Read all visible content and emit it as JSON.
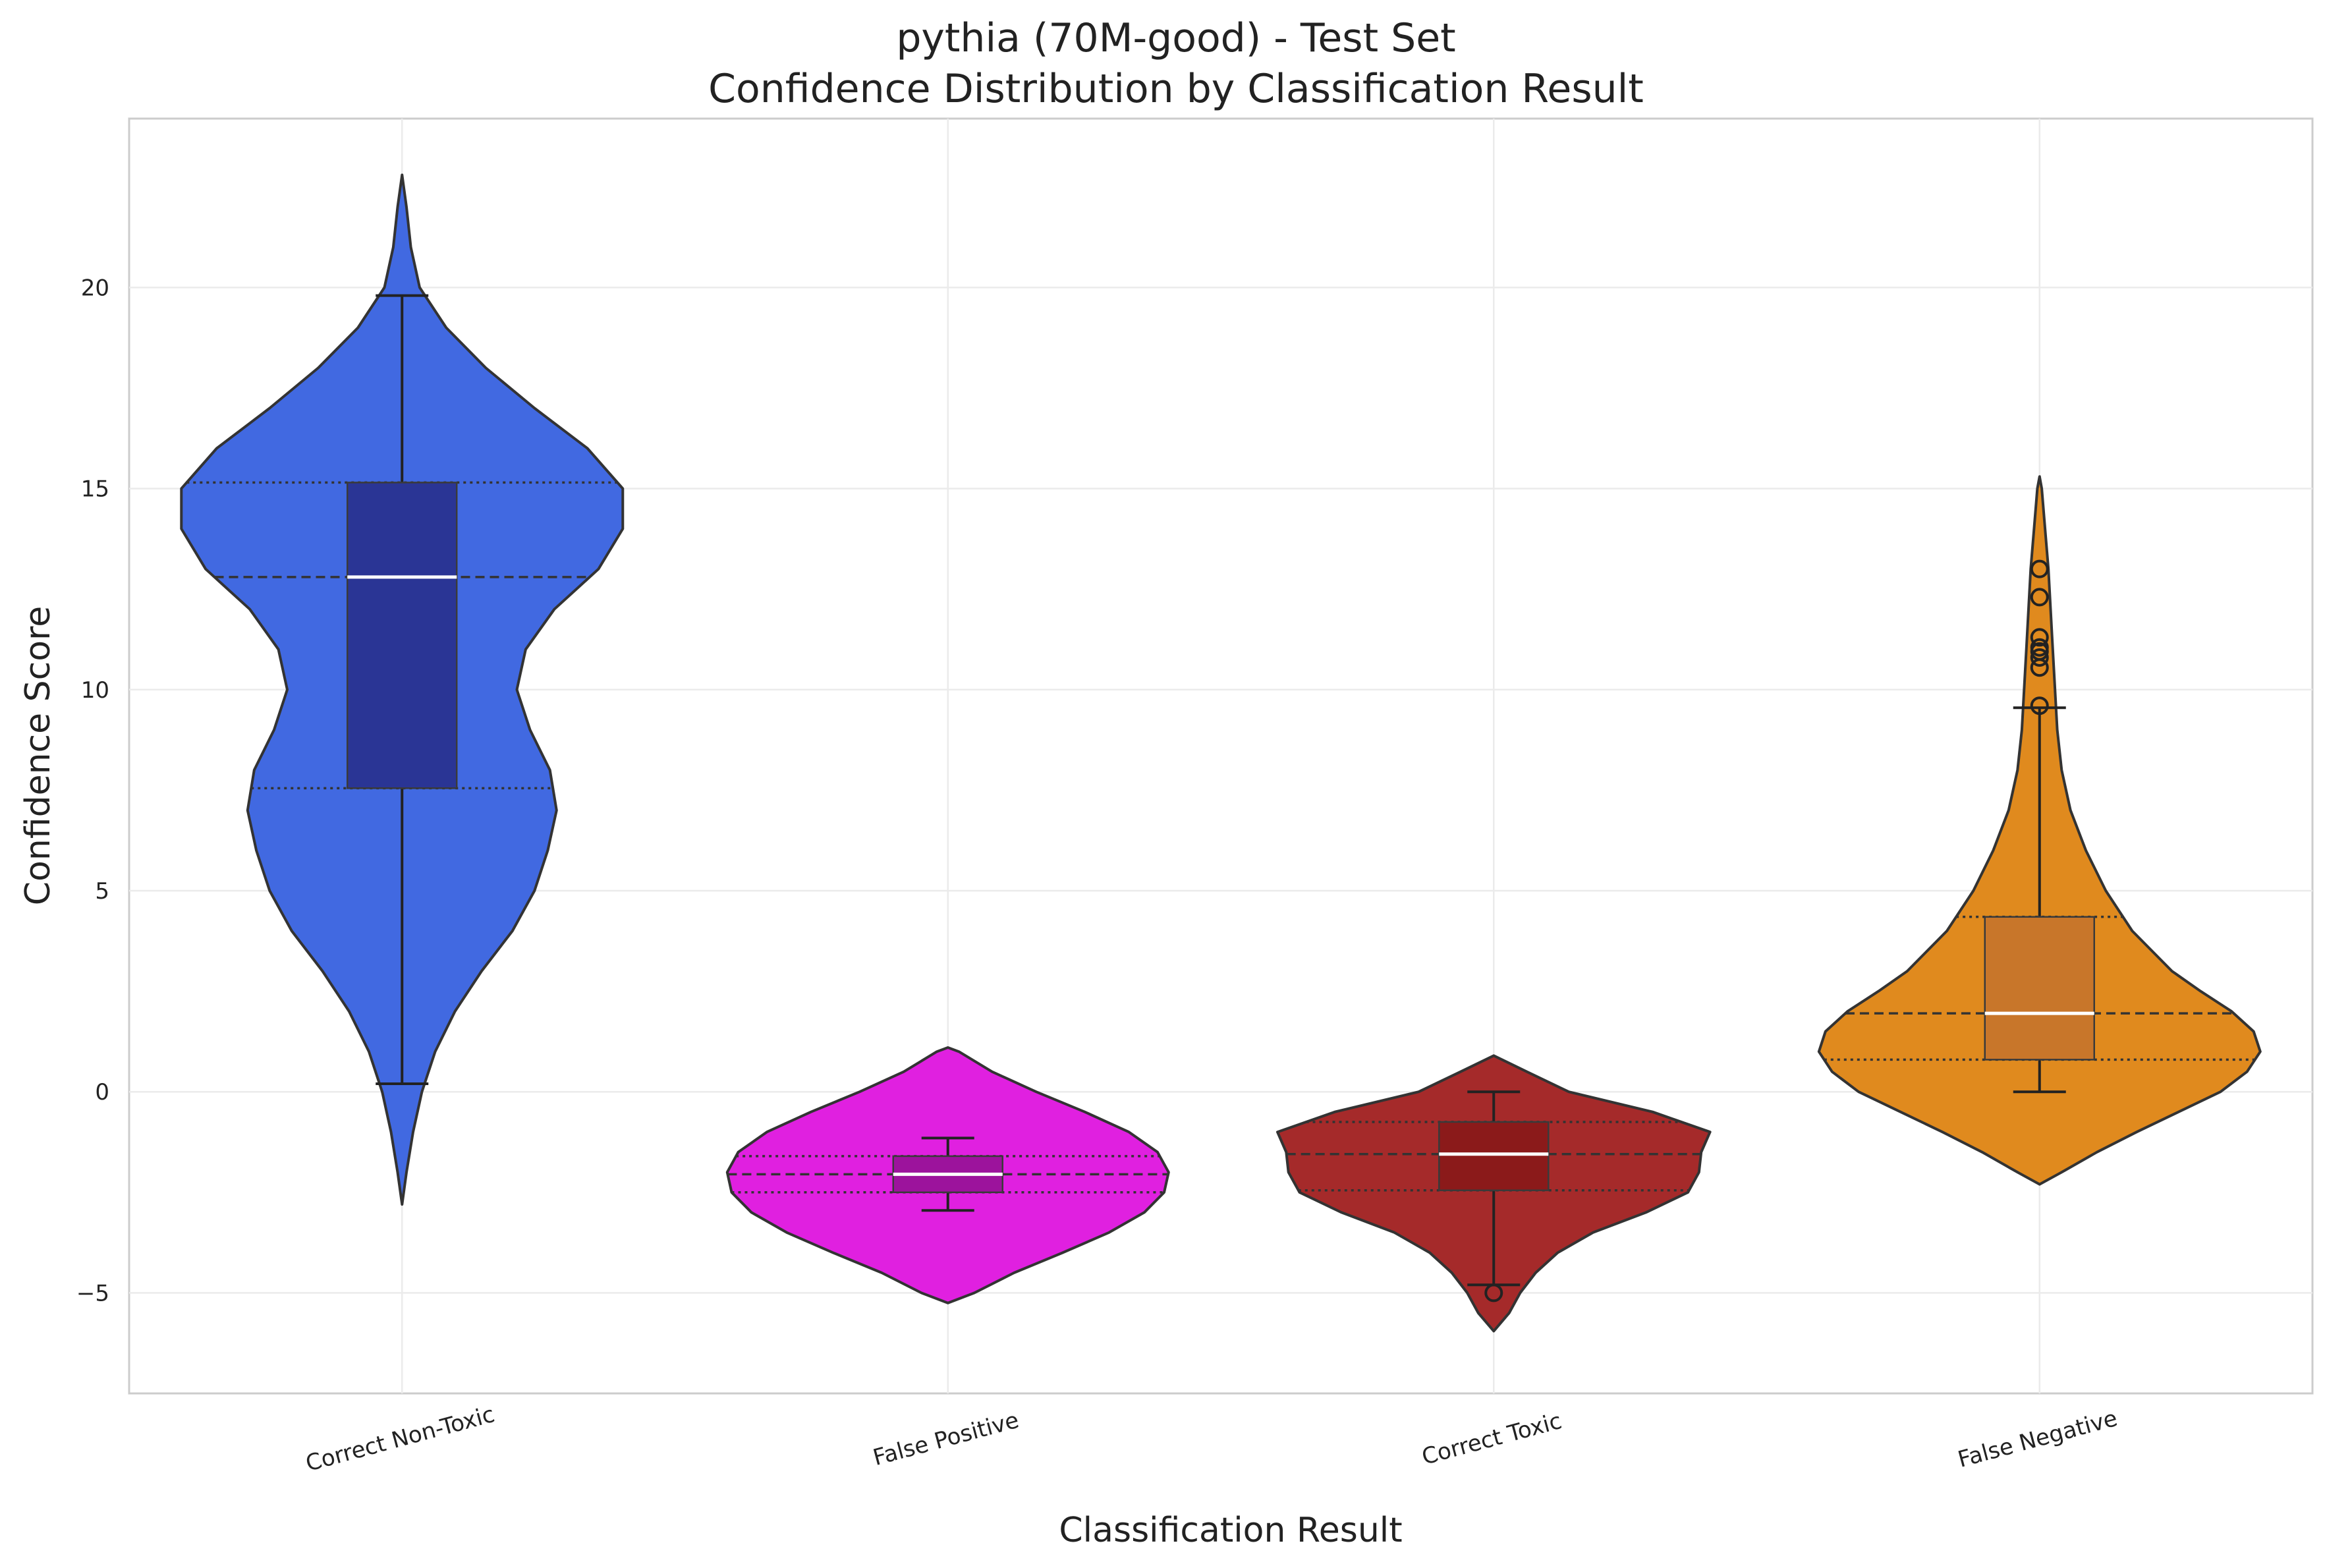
{
  "chart_data": {
    "type": "violin",
    "title": "pythia (70M-good) - Test Set",
    "subtitle": "Confidence Distribution by Classification Result",
    "xlabel": "Classification Result",
    "ylabel": "Confidence Score",
    "ylim": [
      -7.5,
      24.2
    ],
    "yticks": [
      -5,
      0,
      5,
      10,
      15,
      20
    ],
    "grid": true,
    "categories": [
      "Correct Non-Toxic",
      "False Positive",
      "Correct Toxic",
      "False Negative"
    ],
    "series": [
      {
        "name": "Correct Non-Toxic",
        "color": "#4169e1",
        "box_color": "#2a3595",
        "whisker_low": 0.2,
        "q1": 7.55,
        "median": 12.8,
        "q3": 15.15,
        "whisker_high": 19.8,
        "outliers": [],
        "density": [
          [
            -2.8,
            0.0
          ],
          [
            -2.0,
            0.02
          ],
          [
            -1.0,
            0.05
          ],
          [
            0.0,
            0.09
          ],
          [
            1.0,
            0.15
          ],
          [
            2.0,
            0.24
          ],
          [
            3.0,
            0.36
          ],
          [
            4.0,
            0.5
          ],
          [
            5.0,
            0.6
          ],
          [
            6.0,
            0.66
          ],
          [
            7.0,
            0.7
          ],
          [
            8.0,
            0.67
          ],
          [
            9.0,
            0.58
          ],
          [
            10.0,
            0.52
          ],
          [
            11.0,
            0.56
          ],
          [
            12.0,
            0.69
          ],
          [
            13.0,
            0.89
          ],
          [
            14.0,
            1.0
          ],
          [
            15.0,
            1.0
          ],
          [
            16.0,
            0.84
          ],
          [
            17.0,
            0.6
          ],
          [
            18.0,
            0.38
          ],
          [
            19.0,
            0.2
          ],
          [
            20.0,
            0.08
          ],
          [
            21.0,
            0.04
          ],
          [
            22.0,
            0.02
          ],
          [
            22.8,
            0.0
          ]
        ]
      },
      {
        "name": "False Positive",
        "color": "#e020e0",
        "box_color": "#9c139c",
        "whisker_low": -2.95,
        "q1": -2.5,
        "median": -2.05,
        "q3": -1.6,
        "whisker_high": -1.15,
        "outliers": [],
        "density": [
          [
            -5.25,
            0.0
          ],
          [
            -5.0,
            0.12
          ],
          [
            -4.5,
            0.3
          ],
          [
            -4.0,
            0.52
          ],
          [
            -3.5,
            0.73
          ],
          [
            -3.0,
            0.89
          ],
          [
            -2.5,
            0.98
          ],
          [
            -2.0,
            1.0
          ],
          [
            -1.5,
            0.95
          ],
          [
            -1.0,
            0.82
          ],
          [
            -0.5,
            0.62
          ],
          [
            0.0,
            0.4
          ],
          [
            0.5,
            0.2
          ],
          [
            1.0,
            0.05
          ],
          [
            1.1,
            0.0
          ]
        ]
      },
      {
        "name": "Correct Toxic",
        "color": "#a52a2a",
        "box_color": "#8b1a1a",
        "whisker_low": -4.8,
        "q1": -2.45,
        "median": -1.55,
        "q3": -0.75,
        "whisker_high": 0.0,
        "outliers": [
          -5.0
        ],
        "density": [
          [
            -5.95,
            0.0
          ],
          [
            -5.5,
            0.07
          ],
          [
            -5.0,
            0.12
          ],
          [
            -4.5,
            0.19
          ],
          [
            -4.0,
            0.29
          ],
          [
            -3.5,
            0.45
          ],
          [
            -3.0,
            0.69
          ],
          [
            -2.5,
            0.88
          ],
          [
            -2.0,
            0.93
          ],
          [
            -1.5,
            0.94
          ],
          [
            -1.0,
            0.98
          ],
          [
            -0.5,
            0.72
          ],
          [
            0.0,
            0.34
          ],
          [
            0.5,
            0.15
          ],
          [
            0.9,
            0.0
          ]
        ]
      },
      {
        "name": "False Negative",
        "color": "#e08a1e",
        "box_color": "#c8762a",
        "whisker_low": 0.0,
        "q1": 0.8,
        "median": 1.95,
        "q3": 4.35,
        "whisker_high": 9.55,
        "outliers": [
          9.6,
          10.55,
          10.8,
          10.95,
          11.05,
          11.3,
          12.3,
          13.0
        ],
        "density": [
          [
            -2.3,
            0.0
          ],
          [
            -2.0,
            0.1
          ],
          [
            -1.5,
            0.26
          ],
          [
            -1.0,
            0.44
          ],
          [
            -0.5,
            0.63
          ],
          [
            0.0,
            0.82
          ],
          [
            0.5,
            0.94
          ],
          [
            1.0,
            1.0
          ],
          [
            1.5,
            0.97
          ],
          [
            2.0,
            0.87
          ],
          [
            2.5,
            0.73
          ],
          [
            3.0,
            0.6
          ],
          [
            4.0,
            0.42
          ],
          [
            5.0,
            0.3
          ],
          [
            6.0,
            0.21
          ],
          [
            7.0,
            0.14
          ],
          [
            8.0,
            0.1
          ],
          [
            9.0,
            0.08
          ],
          [
            10.0,
            0.07
          ],
          [
            11.0,
            0.06
          ],
          [
            12.0,
            0.05
          ],
          [
            13.0,
            0.04
          ],
          [
            14.0,
            0.025
          ],
          [
            15.0,
            0.01
          ],
          [
            15.3,
            0.0
          ]
        ]
      }
    ]
  }
}
